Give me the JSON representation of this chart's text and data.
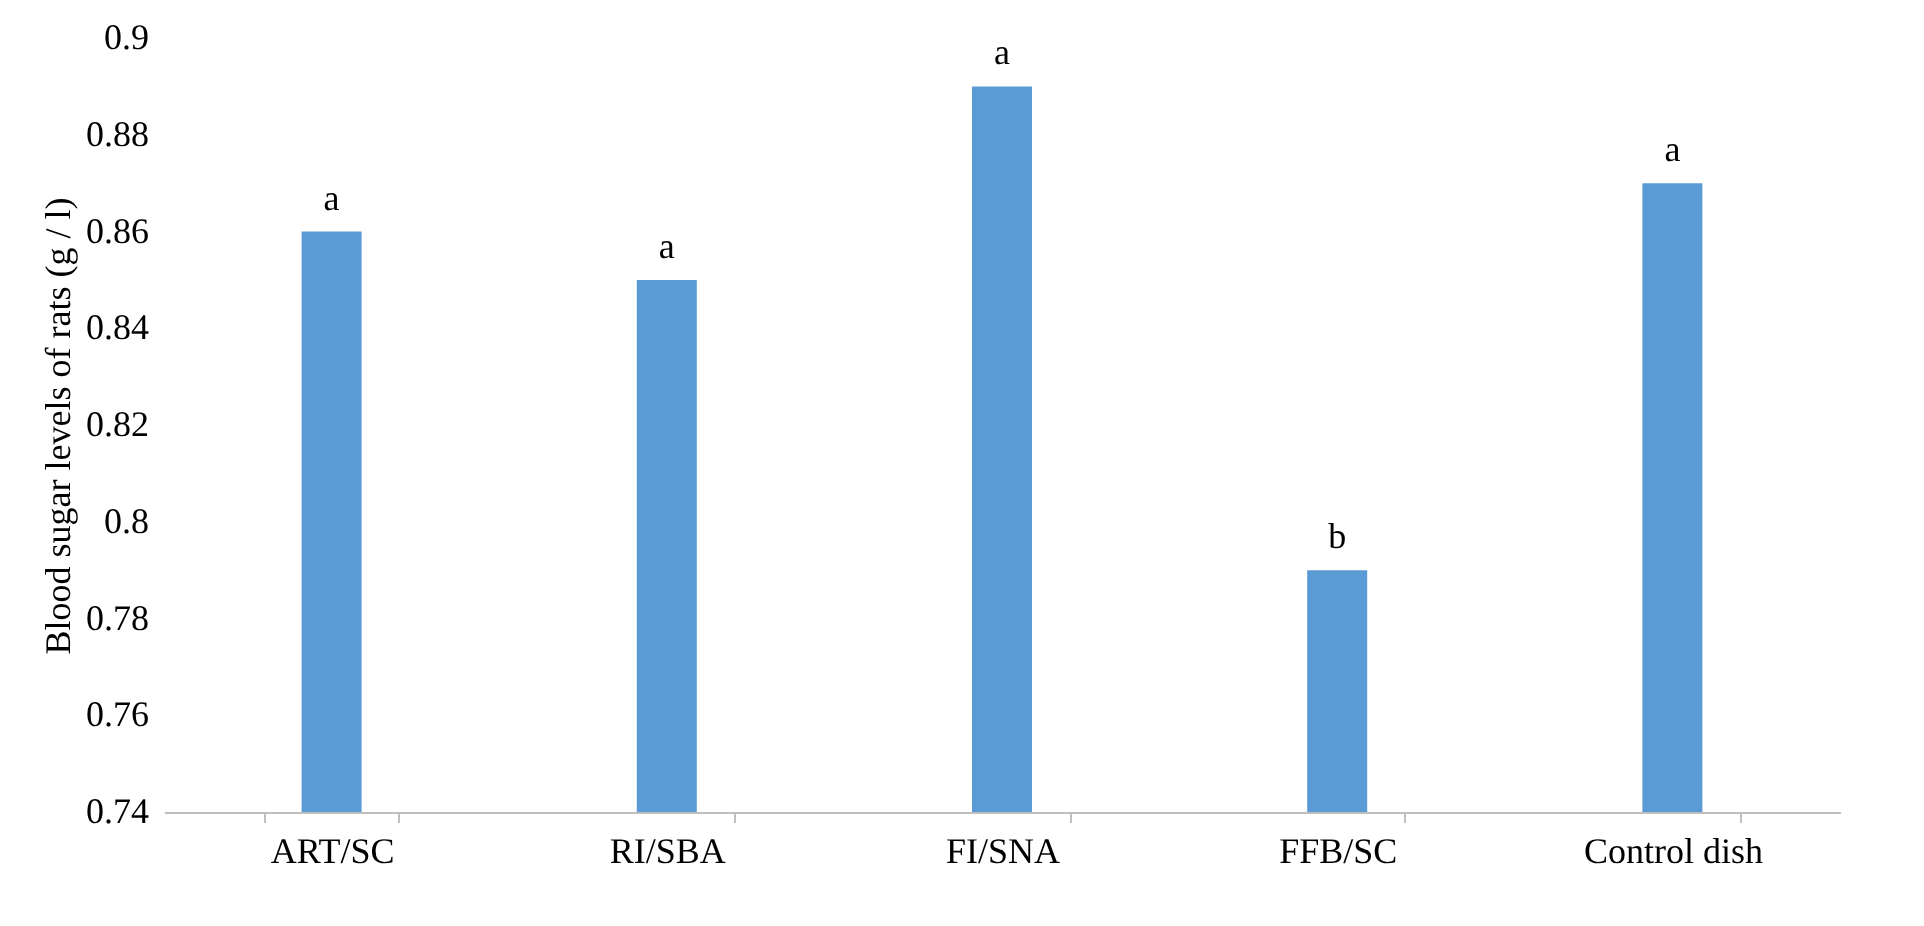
{
  "chart_data": {
    "type": "bar",
    "ylabel": "Blood sugar levels of rats (g / l)",
    "categories": [
      "ART/SC",
      "RI/SBA",
      "FI/SNA",
      "FFB/SC",
      "Control dish"
    ],
    "values": [
      0.86,
      0.85,
      0.89,
      0.79,
      0.87
    ],
    "color": "#5b9bd5",
    "ylim": [
      0.74,
      0.9
    ],
    "yticks": [
      0.74,
      0.76,
      0.78,
      0.8,
      0.82,
      0.84,
      0.86,
      0.88,
      0.9
    ],
    "grid": false,
    "annotations": [
      {
        "text": "a",
        "x": "ART/SC",
        "y": 0.86
      },
      {
        "text": "a",
        "x": "RI/SBA",
        "y": 0.85
      },
      {
        "text": "a",
        "x": "FI/SNA",
        "y": 0.89
      },
      {
        "text": "b",
        "x": "FFB/SC",
        "y": 0.79
      },
      {
        "text": "a",
        "x": "Control dish",
        "y": 0.87
      }
    ]
  }
}
